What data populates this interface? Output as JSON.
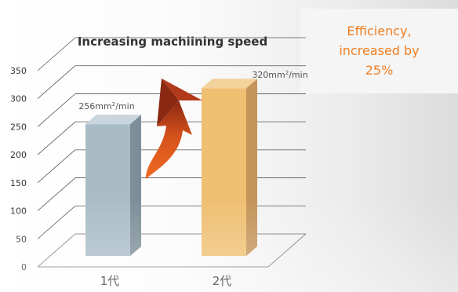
{
  "chart_data": {
    "type": "bar",
    "title": "Increasing machiining speed",
    "categories": [
      "1代",
      "2代"
    ],
    "values": [
      256,
      320
    ],
    "data_labels": [
      {
        "value": "256",
        "unit": "mm",
        "unit_sup": "2",
        "unit_suffix": "/min"
      },
      {
        "value": "320",
        "unit": "mm",
        "unit_sup": "2",
        "unit_suffix": "/min"
      }
    ],
    "y_ticks": [
      0,
      50,
      100,
      150,
      200,
      250,
      300,
      350
    ],
    "ylim": [
      0,
      350
    ],
    "xlabel": "",
    "ylabel": "",
    "grid": true,
    "legend": "none",
    "style": "3d",
    "bar_colors": [
      {
        "front": "#a9bcc6",
        "side": "#7d8e98",
        "top": "#c9d6dd"
      },
      {
        "front": "#efbf72",
        "side": "#c4945a",
        "top": "#f3d29b"
      }
    ],
    "arrow_color": "#e05a1c"
  },
  "note": {
    "lines": [
      "Efficiency,",
      "increased by",
      "25%"
    ],
    "color": "#f07d21"
  }
}
